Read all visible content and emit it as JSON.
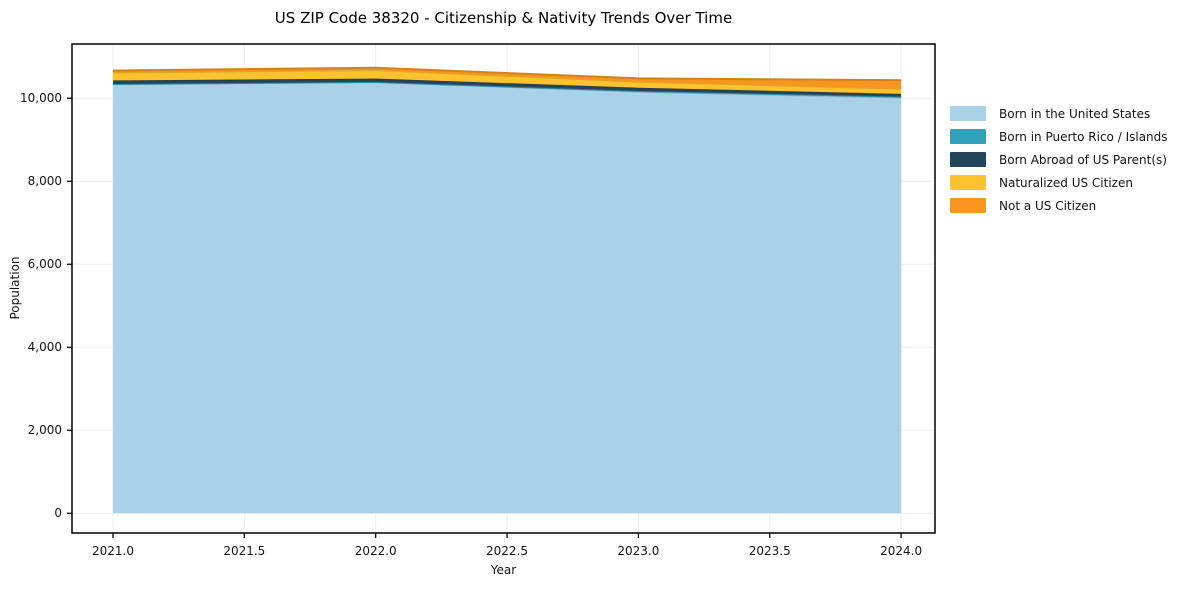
{
  "figure": {
    "title": "US ZIP Code 38320 - Citizenship & Nativity Trends Over Time"
  },
  "chart_data": {
    "type": "area",
    "stacked": true,
    "title": "US ZIP Code 38320 - Citizenship & Nativity Trends Over Time",
    "xlabel": "Year",
    "ylabel": "Population",
    "x": [
      2021,
      2022,
      2023,
      2024
    ],
    "series": [
      {
        "name": "Born in the United States",
        "color": "#a8d2e7",
        "values": [
          10340,
          10390,
          10160,
          10015
        ]
      },
      {
        "name": "Born in Puerto Rico / Islands",
        "color": "#31a1bb",
        "values": [
          5,
          5,
          15,
          25
        ]
      },
      {
        "name": "Born Abroad of US Parent(s)",
        "color": "#25465a",
        "values": [
          85,
          80,
          80,
          65
        ]
      },
      {
        "name": "Naturalized US Citizen",
        "color": "#fcc32d",
        "values": [
          190,
          205,
          145,
          125
        ]
      },
      {
        "name": "Not a US Citizen",
        "color": "#f7961f",
        "values": [
          50,
          55,
          80,
          205
        ]
      }
    ],
    "totals": [
      10670,
      10735,
      10480,
      10435
    ],
    "xticks": [
      2021.0,
      2021.5,
      2022.0,
      2022.5,
      2023.0,
      2023.5,
      2024.0
    ],
    "xtick_labels": [
      "2021.0",
      "2021.5",
      "2022.0",
      "2022.5",
      "2023.0",
      "2023.5",
      "2024.0"
    ],
    "yticks": [
      0,
      2000,
      4000,
      6000,
      8000,
      10000
    ],
    "ytick_labels": [
      "0",
      "2,000",
      "4,000",
      "6,000",
      "8,000",
      "10,000"
    ],
    "xlim": [
      2020.844,
      2024.129
    ],
    "ylim": [
      -475,
      11308
    ],
    "grid": true,
    "grid_color": "#ededed",
    "spine_color": "#000000",
    "background": "#ffffff",
    "legend_position": "right outside, frameless"
  }
}
